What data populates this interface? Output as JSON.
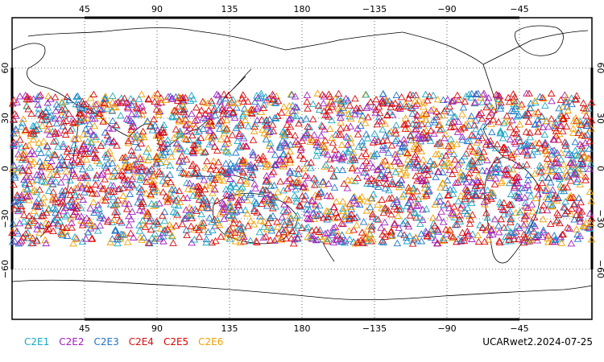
{
  "map": {
    "projection": "equirectangular",
    "lon_range": [
      0,
      360
    ],
    "lat_range": [
      -90,
      90
    ],
    "grid": true,
    "center_lon": 180
  },
  "axes": {
    "top_lon_labels": [
      "45",
      "90",
      "135",
      "180",
      "−135",
      "−90",
      "−45"
    ],
    "bottom_lon_labels": [
      "45",
      "90",
      "135",
      "180",
      "−135",
      "−90",
      "−45"
    ],
    "left_lat_labels": [
      "60",
      "30",
      "0",
      "−30",
      "−60"
    ],
    "right_lat_labels": [
      "60",
      "30",
      "0",
      "−30",
      "−60"
    ]
  },
  "legend": [
    {
      "label": "C2E1",
      "color": "#1aa7c4"
    },
    {
      "label": "C2E2",
      "color": "#a020c0"
    },
    {
      "label": "C2E3",
      "color": "#1e73c8"
    },
    {
      "label": "C2E4",
      "color": "#d01010"
    },
    {
      "label": "C2E5",
      "color": "#e00000"
    },
    {
      "label": "C2E6",
      "color": "#f0a000"
    }
  ],
  "product_label": "UCARwet2.2024-07-25",
  "occultations": {
    "marker": "triangle-outline",
    "lat_band": [
      -45,
      45
    ],
    "count_estimate": 3000
  }
}
